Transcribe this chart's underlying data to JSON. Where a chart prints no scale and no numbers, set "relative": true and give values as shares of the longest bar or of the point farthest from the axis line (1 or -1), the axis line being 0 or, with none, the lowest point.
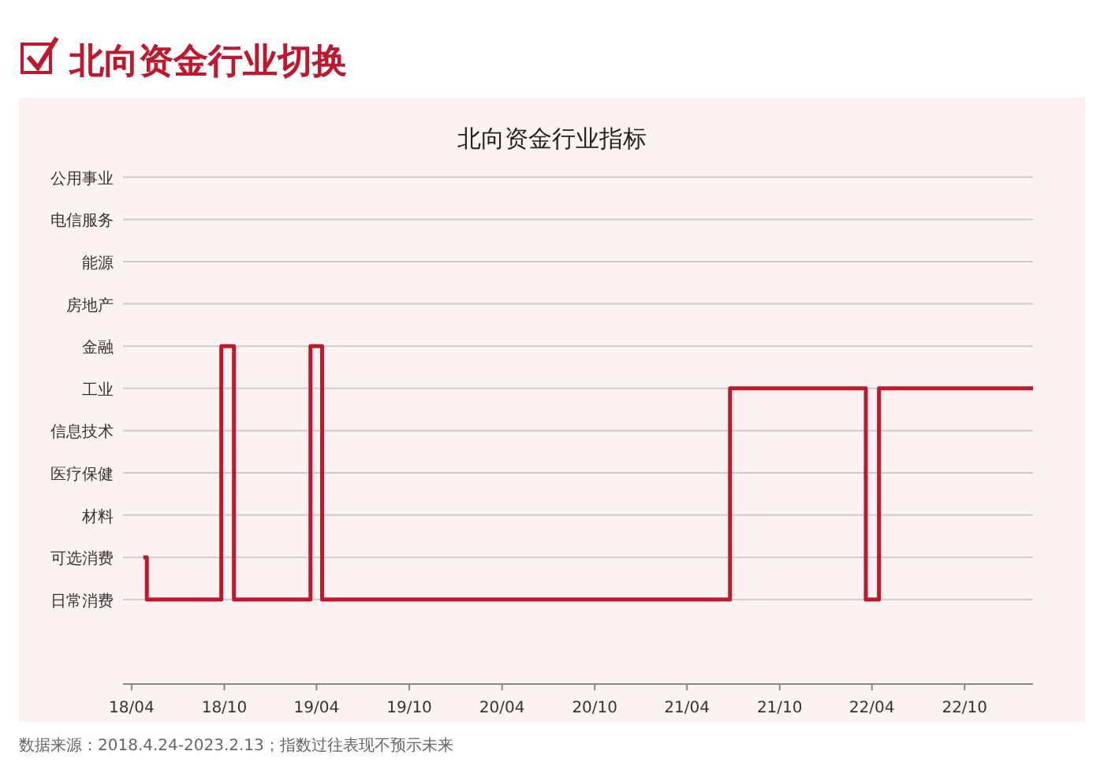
{
  "chart_data": {
    "type": "step",
    "title": "北向资金行业切换",
    "subtitle": "北向资金行业指标",
    "annotations": [
      "数据来源：2018.4.24-2023.2.13；指数过往表现不预示未来"
    ],
    "x": [
      "2018-04-24",
      "2018-05-01",
      "2018-09-25",
      "2018-10-20",
      "2019-03-20",
      "2019-04-12",
      "2021-06-25",
      "2022-03-20",
      "2022-04-15",
      "2023-02-13"
    ],
    "series": [
      {
        "color": "#c0172d",
        "values": [
          0.375,
          0.25,
          1,
          0.25,
          1,
          0.25,
          0.875,
          0.25,
          0.875,
          0.875
        ]
      }
    ],
    "relative": true,
    "xlim": [
      "2018-03-15",
      "2023-02-13"
    ],
    "xticks": [
      {
        "value": "2018-04-01",
        "label": "18/04"
      },
      {
        "value": "2018-10-01",
        "label": "18/10"
      },
      {
        "value": "2019-04-01",
        "label": "19/04"
      },
      {
        "value": "2019-10-01",
        "label": "19/10"
      },
      {
        "value": "2020-04-01",
        "label": "20/04"
      },
      {
        "value": "2020-10-01",
        "label": "20/10"
      },
      {
        "value": "2021-04-01",
        "label": "21/04"
      },
      {
        "value": "2021-10-01",
        "label": "21/10"
      },
      {
        "value": "2022-04-01",
        "label": "22/04"
      },
      {
        "value": "2022-10-01",
        "label": "22/10"
      }
    ],
    "y_categories": [
      "公用事业",
      "电信服务",
      "能源",
      "房地产",
      "金融",
      "工业",
      "信息技术",
      "医疗保健",
      "材料",
      "可选消费",
      "日常消费"
    ],
    "grid": "y"
  }
}
